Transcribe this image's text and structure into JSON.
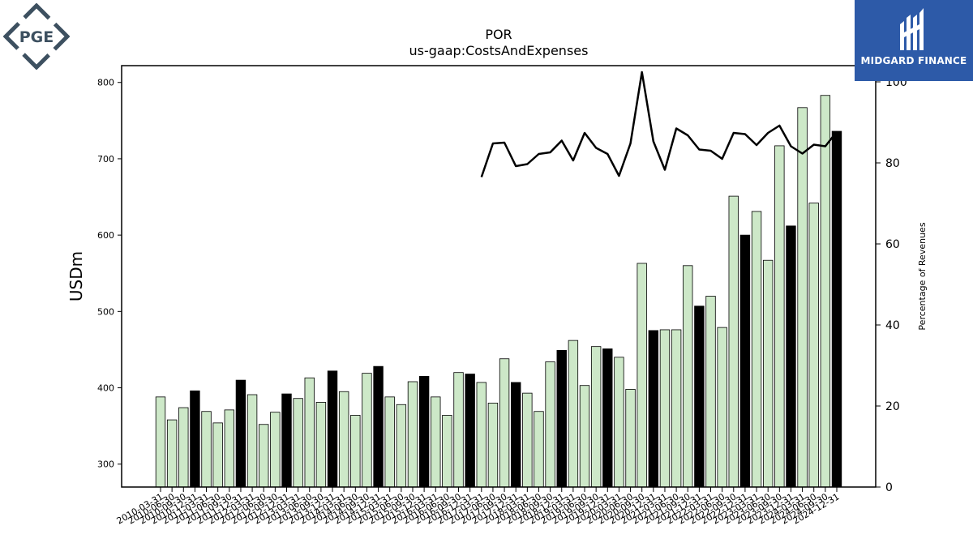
{
  "logos": {
    "left_text": "PGE",
    "right_text": "MIDGARD FINANCE"
  },
  "colors": {
    "bar_fill": "#cde8c8",
    "bar_highlight": "#000000",
    "line": "#000000",
    "logo_left": "#3d5060",
    "logo_right_bg": "#2d5aa8"
  },
  "chart_data": {
    "type": "bar",
    "title": "POR",
    "subtitle": "us-gaap:CostsAndExpenses",
    "ylabel": "USDm",
    "y2label": "Percentage of Revenues",
    "ylim": [
      270,
      822
    ],
    "y2lim": [
      0,
      104
    ],
    "yticks": [
      300,
      400,
      500,
      600,
      700,
      800
    ],
    "y2ticks": [
      0,
      20,
      40,
      60,
      80,
      100
    ],
    "x_tick_labels": [
      "2010-03-31",
      "2010-06-30",
      "2010-09-30",
      "2010-12-31",
      "2011-03-31",
      "2011-06-30",
      "2011-09-30",
      "2011-12-31",
      "2012-03-31",
      "2012-06-30",
      "2012-09-30",
      "2012-12-31",
      "2013-03-31",
      "2013-06-30",
      "2013-09-30",
      "2013-12-31",
      "2014-03-31",
      "2014-06-30",
      "2014-09-30",
      "2014-12-31",
      "2015-03-31",
      "2015-06-30",
      "2015-09-30",
      "2015-12-31",
      "2016-03-31",
      "2016-06-30",
      "2016-09-30",
      "2016-12-31",
      "2017-03-31",
      "2017-06-30",
      "2017-09-30",
      "2017-12-31",
      "2018-03-31",
      "2018-06-30",
      "2018-09-30",
      "2018-12-31",
      "2019-03-31",
      "2019-06-30",
      "2019-09-30",
      "2019-12-31",
      "2020-03-31",
      "2020-06-30",
      "2020-09-30",
      "2020-12-31",
      "2021-03-31",
      "2021-06-30",
      "2021-09-30",
      "2021-12-31",
      "2022-03-31",
      "2022-06-30",
      "2022-09-30",
      "2022-12-31",
      "2023-03-31",
      "2023-06-30",
      "2023-09-30",
      "2023-12-31",
      "2024-03-31",
      "2024-06-30",
      "2024-09-30",
      "2024-12-31"
    ],
    "series": [
      {
        "type": "bar",
        "axis": "left",
        "highlight_every": 4,
        "values": [
          388,
          358,
          374,
          396,
          369,
          354,
          371,
          410,
          391,
          352,
          368,
          392,
          386,
          413,
          381,
          422,
          395,
          364,
          419,
          428,
          388,
          378,
          408,
          415,
          388,
          364,
          420,
          418,
          407,
          380,
          438,
          407,
          393,
          369,
          434,
          449,
          462,
          403,
          454,
          451,
          440,
          398,
          563,
          475,
          476,
          476,
          560,
          507,
          520,
          479,
          651,
          600,
          631,
          567,
          717,
          612,
          767,
          642,
          783,
          736
        ]
      },
      {
        "type": "line",
        "axis": "right",
        "values": [
          null,
          null,
          null,
          null,
          null,
          null,
          null,
          null,
          null,
          null,
          null,
          null,
          null,
          null,
          null,
          null,
          null,
          null,
          null,
          null,
          null,
          null,
          null,
          null,
          null,
          null,
          null,
          null,
          76.5,
          84.8,
          85.0,
          79.2,
          79.7,
          82.2,
          82.6,
          85.5,
          80.6,
          87.4,
          83.7,
          82.2,
          76.8,
          84.8,
          102.4,
          85.3,
          78.3,
          88.5,
          86.8,
          83.3,
          83.0,
          81.0,
          87.4,
          87.1,
          84.4,
          87.4,
          89.2,
          84.1,
          82.3,
          84.5,
          84.1,
          87.7
        ]
      }
    ]
  }
}
